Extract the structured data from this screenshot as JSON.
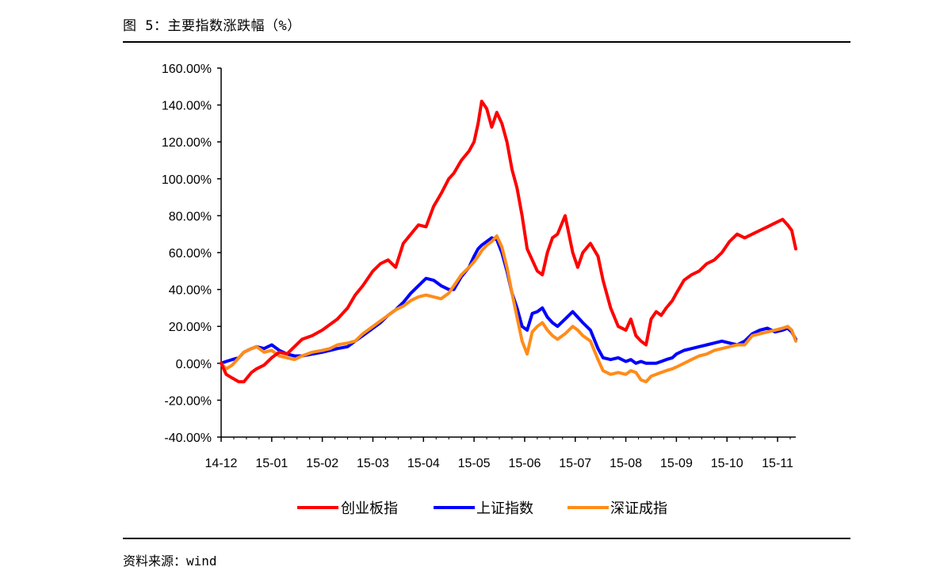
{
  "header": {
    "title": "图 5：主要指数涨跌幅（%）"
  },
  "footer": {
    "source": "资料来源：wind"
  },
  "chart_data": {
    "type": "line",
    "title": "",
    "xlabel": "",
    "ylabel": "",
    "ylim": [
      -0.4,
      1.6
    ],
    "y_ticks": [
      1.6,
      1.4,
      1.2,
      1.0,
      0.8,
      0.6,
      0.4,
      0.2,
      0.0,
      -0.2,
      -0.4
    ],
    "y_tick_labels": [
      "160.00%",
      "140.00%",
      "120.00%",
      "100.00%",
      "80.00%",
      "60.00%",
      "40.00%",
      "20.00%",
      "0.00%",
      "-20.00%",
      "-40.00%"
    ],
    "x_tick_labels": [
      "14-12",
      "15-01",
      "15-02",
      "15-03",
      "15-04",
      "15-05",
      "15-06",
      "15-07",
      "15-08",
      "15-09",
      "15-10",
      "15-11"
    ],
    "x_range": [
      0,
      11.36
    ],
    "grid": false,
    "legend_position": "bottom",
    "series": [
      {
        "name": "创业板指",
        "color": "#ff0000",
        "x": [
          0,
          0.1,
          0.22,
          0.35,
          0.45,
          0.6,
          0.7,
          0.85,
          1,
          1.15,
          1.3,
          1.45,
          1.6,
          1.8,
          2,
          2.15,
          2.3,
          2.5,
          2.65,
          2.8,
          3,
          3.15,
          3.3,
          3.45,
          3.6,
          3.75,
          3.9,
          4.05,
          4.2,
          4.35,
          4.5,
          4.6,
          4.75,
          4.9,
          5,
          5.08,
          5.15,
          5.25,
          5.35,
          5.45,
          5.55,
          5.65,
          5.75,
          5.85,
          5.95,
          6.05,
          6.15,
          6.25,
          6.35,
          6.45,
          6.55,
          6.65,
          6.8,
          6.95,
          7.05,
          7.15,
          7.3,
          7.45,
          7.55,
          7.7,
          7.85,
          8,
          8.1,
          8.2,
          8.3,
          8.4,
          8.5,
          8.6,
          8.7,
          8.8,
          8.92,
          9,
          9.15,
          9.3,
          9.45,
          9.6,
          9.75,
          9.9,
          10.05,
          10.2,
          10.35,
          10.5,
          10.65,
          10.8,
          10.95,
          11.1,
          11.2,
          11.28,
          11.36
        ],
        "values": [
          0.0,
          -0.06,
          -0.08,
          -0.1,
          -0.1,
          -0.05,
          -0.03,
          -0.01,
          0.03,
          0.06,
          0.05,
          0.09,
          0.13,
          0.15,
          0.18,
          0.21,
          0.24,
          0.3,
          0.37,
          0.42,
          0.5,
          0.54,
          0.56,
          0.52,
          0.65,
          0.7,
          0.75,
          0.74,
          0.85,
          0.92,
          1.0,
          1.03,
          1.1,
          1.15,
          1.2,
          1.3,
          1.42,
          1.38,
          1.28,
          1.36,
          1.3,
          1.2,
          1.05,
          0.95,
          0.8,
          0.62,
          0.56,
          0.5,
          0.48,
          0.6,
          0.68,
          0.7,
          0.8,
          0.6,
          0.52,
          0.6,
          0.65,
          0.58,
          0.45,
          0.3,
          0.2,
          0.18,
          0.24,
          0.15,
          0.12,
          0.1,
          0.24,
          0.28,
          0.26,
          0.3,
          0.34,
          0.38,
          0.45,
          0.48,
          0.5,
          0.54,
          0.56,
          0.6,
          0.66,
          0.7,
          0.68,
          0.7,
          0.72,
          0.74,
          0.76,
          0.78,
          0.75,
          0.72,
          0.62
        ]
      },
      {
        "name": "上证指数",
        "color": "#0000ff",
        "x": [
          0,
          0.1,
          0.22,
          0.35,
          0.45,
          0.6,
          0.7,
          0.85,
          1,
          1.15,
          1.3,
          1.45,
          1.6,
          1.8,
          2,
          2.15,
          2.3,
          2.5,
          2.65,
          2.8,
          3,
          3.15,
          3.3,
          3.45,
          3.6,
          3.75,
          3.9,
          4.05,
          4.2,
          4.35,
          4.5,
          4.6,
          4.75,
          4.9,
          5,
          5.08,
          5.15,
          5.25,
          5.35,
          5.45,
          5.55,
          5.65,
          5.75,
          5.85,
          5.95,
          6.05,
          6.15,
          6.25,
          6.35,
          6.45,
          6.55,
          6.65,
          6.8,
          6.95,
          7.05,
          7.15,
          7.3,
          7.45,
          7.55,
          7.7,
          7.85,
          8,
          8.1,
          8.2,
          8.3,
          8.4,
          8.5,
          8.6,
          8.7,
          8.8,
          8.92,
          9,
          9.15,
          9.3,
          9.45,
          9.6,
          9.75,
          9.9,
          10.05,
          10.2,
          10.35,
          10.5,
          10.65,
          10.8,
          10.95,
          11.1,
          11.2,
          11.28,
          11.36
        ],
        "values": [
          0.0,
          0.01,
          0.02,
          0.03,
          0.06,
          0.08,
          0.09,
          0.08,
          0.1,
          0.07,
          0.05,
          0.04,
          0.04,
          0.05,
          0.06,
          0.07,
          0.08,
          0.09,
          0.12,
          0.15,
          0.19,
          0.22,
          0.26,
          0.29,
          0.33,
          0.38,
          0.42,
          0.46,
          0.45,
          0.42,
          0.4,
          0.4,
          0.47,
          0.52,
          0.58,
          0.62,
          0.64,
          0.66,
          0.68,
          0.67,
          0.6,
          0.5,
          0.38,
          0.3,
          0.2,
          0.18,
          0.27,
          0.28,
          0.3,
          0.25,
          0.22,
          0.2,
          0.24,
          0.28,
          0.25,
          0.22,
          0.18,
          0.08,
          0.03,
          0.02,
          0.03,
          0.01,
          0.02,
          0.0,
          0.01,
          0.0,
          0.0,
          0.0,
          0.01,
          0.02,
          0.03,
          0.05,
          0.07,
          0.08,
          0.09,
          0.1,
          0.11,
          0.12,
          0.11,
          0.1,
          0.12,
          0.16,
          0.18,
          0.19,
          0.17,
          0.18,
          0.19,
          0.17,
          0.13
        ]
      },
      {
        "name": "深证成指",
        "color": "#ff8c1a",
        "x": [
          0,
          0.1,
          0.22,
          0.35,
          0.45,
          0.6,
          0.7,
          0.85,
          1,
          1.15,
          1.3,
          1.45,
          1.6,
          1.8,
          2,
          2.15,
          2.3,
          2.5,
          2.65,
          2.8,
          3,
          3.15,
          3.3,
          3.45,
          3.6,
          3.75,
          3.9,
          4.05,
          4.2,
          4.35,
          4.5,
          4.6,
          4.75,
          4.9,
          5,
          5.08,
          5.15,
          5.25,
          5.35,
          5.45,
          5.55,
          5.65,
          5.75,
          5.85,
          5.95,
          6.05,
          6.15,
          6.25,
          6.35,
          6.45,
          6.55,
          6.65,
          6.8,
          6.95,
          7.05,
          7.15,
          7.3,
          7.45,
          7.55,
          7.7,
          7.85,
          8,
          8.1,
          8.2,
          8.3,
          8.4,
          8.5,
          8.6,
          8.7,
          8.8,
          8.92,
          9,
          9.15,
          9.3,
          9.45,
          9.6,
          9.75,
          9.9,
          10.05,
          10.2,
          10.35,
          10.5,
          10.65,
          10.8,
          10.95,
          11.1,
          11.2,
          11.28,
          11.36
        ],
        "values": [
          0.0,
          -0.03,
          -0.01,
          0.03,
          0.06,
          0.08,
          0.09,
          0.06,
          0.07,
          0.04,
          0.03,
          0.02,
          0.04,
          0.06,
          0.07,
          0.08,
          0.1,
          0.11,
          0.12,
          0.16,
          0.2,
          0.23,
          0.26,
          0.29,
          0.31,
          0.34,
          0.36,
          0.37,
          0.36,
          0.35,
          0.38,
          0.42,
          0.48,
          0.52,
          0.55,
          0.58,
          0.61,
          0.64,
          0.66,
          0.69,
          0.63,
          0.52,
          0.38,
          0.25,
          0.12,
          0.05,
          0.17,
          0.2,
          0.22,
          0.18,
          0.15,
          0.13,
          0.16,
          0.2,
          0.18,
          0.15,
          0.12,
          0.02,
          -0.04,
          -0.06,
          -0.05,
          -0.06,
          -0.04,
          -0.05,
          -0.09,
          -0.1,
          -0.07,
          -0.06,
          -0.05,
          -0.04,
          -0.03,
          -0.02,
          0.0,
          0.02,
          0.04,
          0.05,
          0.07,
          0.08,
          0.09,
          0.1,
          0.1,
          0.15,
          0.16,
          0.17,
          0.18,
          0.19,
          0.2,
          0.18,
          0.12
        ]
      }
    ]
  }
}
